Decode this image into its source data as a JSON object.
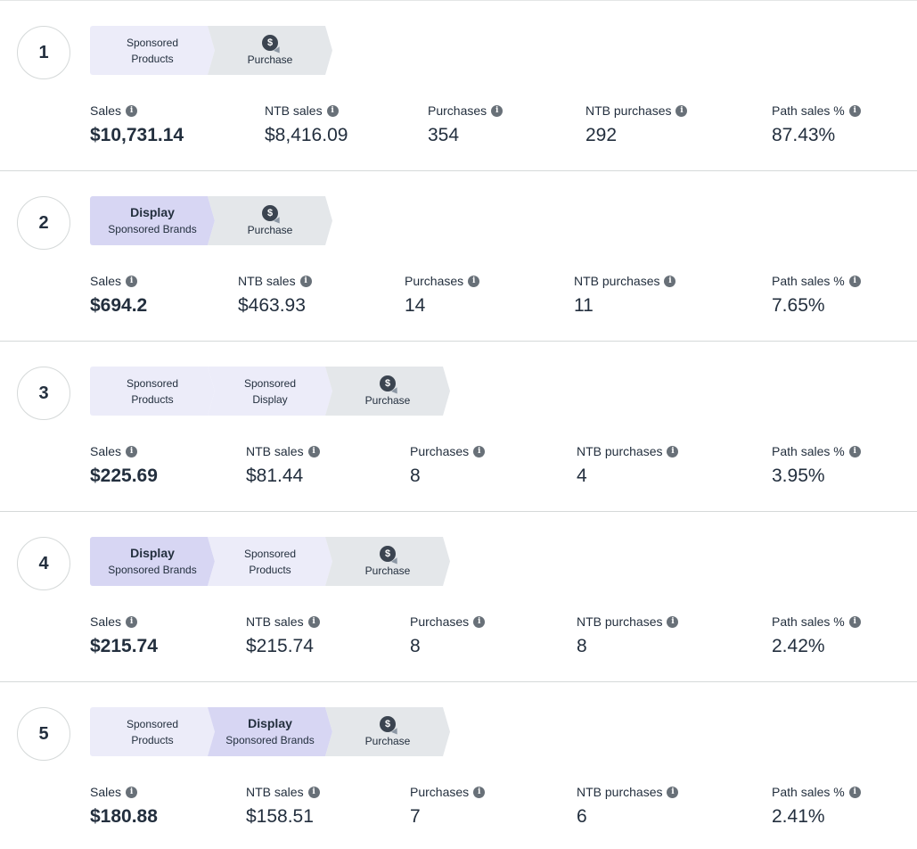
{
  "metric_labels": {
    "sales": "Sales",
    "ntb_sales": "NTB sales",
    "purchases": "Purchases",
    "ntb_purchases": "NTB purchases",
    "path_sales_pct": "Path sales %"
  },
  "icons": {
    "info": "info-icon",
    "purchase": "dollar-cursor-icon"
  },
  "colors": {
    "light_step": "#ececf9",
    "strong_step": "#d7d6f3",
    "purchase_step": "#e4e7ea"
  },
  "paths": [
    {
      "rank": "1",
      "steps": [
        {
          "kind": "light",
          "line1": "Sponsored",
          "line2": "Products"
        },
        {
          "kind": "purchase",
          "label": "Purchase"
        }
      ],
      "metrics": {
        "sales": "$10,731.14",
        "ntb_sales": "$8,416.09",
        "purchases": "354",
        "ntb_purchases": "292",
        "path_sales_pct": "87.43%"
      }
    },
    {
      "rank": "2",
      "steps": [
        {
          "kind": "strong",
          "line1": "Display",
          "line2": "Sponsored Brands"
        },
        {
          "kind": "purchase",
          "label": "Purchase"
        }
      ],
      "metrics": {
        "sales": "$694.2",
        "ntb_sales": "$463.93",
        "purchases": "14",
        "ntb_purchases": "11",
        "path_sales_pct": "7.65%"
      }
    },
    {
      "rank": "3",
      "steps": [
        {
          "kind": "light",
          "line1": "Sponsored",
          "line2": "Products"
        },
        {
          "kind": "light",
          "line1": "Sponsored",
          "line2": "Display"
        },
        {
          "kind": "purchase",
          "label": "Purchase"
        }
      ],
      "metrics": {
        "sales": "$225.69",
        "ntb_sales": "$81.44",
        "purchases": "8",
        "ntb_purchases": "4",
        "path_sales_pct": "3.95%"
      }
    },
    {
      "rank": "4",
      "steps": [
        {
          "kind": "strong",
          "line1": "Display",
          "line2": "Sponsored Brands"
        },
        {
          "kind": "light",
          "line1": "Sponsored",
          "line2": "Products"
        },
        {
          "kind": "purchase",
          "label": "Purchase"
        }
      ],
      "metrics": {
        "sales": "$215.74",
        "ntb_sales": "$215.74",
        "purchases": "8",
        "ntb_purchases": "8",
        "path_sales_pct": "2.42%"
      }
    },
    {
      "rank": "5",
      "steps": [
        {
          "kind": "light",
          "line1": "Sponsored",
          "line2": "Products"
        },
        {
          "kind": "strong",
          "line1": "Display",
          "line2": "Sponsored Brands"
        },
        {
          "kind": "purchase",
          "label": "Purchase"
        }
      ],
      "metrics": {
        "sales": "$180.88",
        "ntb_sales": "$158.51",
        "purchases": "7",
        "ntb_purchases": "6",
        "path_sales_pct": "2.41%"
      }
    }
  ]
}
